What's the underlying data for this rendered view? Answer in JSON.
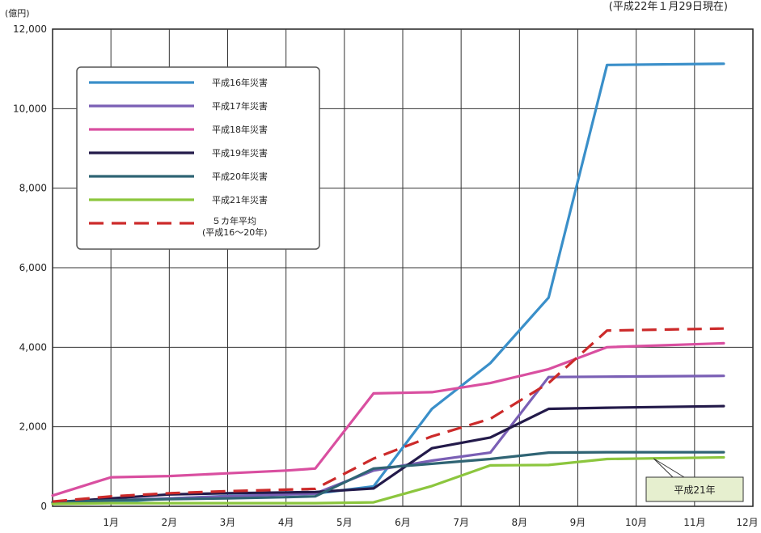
{
  "chart_data": {
    "type": "line",
    "title": "",
    "note": "(平成22年１月29日現在)",
    "y_unit": "(億円)",
    "ylim": [
      0,
      12000
    ],
    "y_ticks": [
      {
        "value": 0,
        "label": "0"
      },
      {
        "value": 2000,
        "label": "2,000"
      },
      {
        "value": 4000,
        "label": "4,000"
      },
      {
        "value": 6000,
        "label": "6,000"
      },
      {
        "value": 8000,
        "label": "8,000"
      },
      {
        "value": 10000,
        "label": "10,000"
      },
      {
        "value": 12000,
        "label": "12,000"
      }
    ],
    "xlim": [
      0,
      12
    ],
    "x_ticks": [
      {
        "value": 1,
        "label": "1月"
      },
      {
        "value": 2,
        "label": "2月"
      },
      {
        "value": 3,
        "label": "3月"
      },
      {
        "value": 4,
        "label": "4月"
      },
      {
        "value": 5,
        "label": "5月"
      },
      {
        "value": 6,
        "label": "6月"
      },
      {
        "value": 7,
        "label": "7月"
      },
      {
        "value": 8,
        "label": "8月"
      },
      {
        "value": 9,
        "label": "9月"
      },
      {
        "value": 10,
        "label": "10月"
      },
      {
        "value": 11,
        "label": "11月"
      },
      {
        "value": 12,
        "label": "12月"
      }
    ],
    "grid": true,
    "legend_position": "top-left",
    "series": [
      {
        "name": "平成16年災害",
        "color": "#3a8fc9",
        "dashed": false,
        "points": [
          [
            0,
            80
          ],
          [
            1,
            100
          ],
          [
            2,
            200
          ],
          [
            3,
            260
          ],
          [
            4,
            300
          ],
          [
            4.5,
            320
          ],
          [
            5.5,
            500
          ],
          [
            6.5,
            2450
          ],
          [
            7.5,
            3600
          ],
          [
            8.5,
            5250
          ],
          [
            9.5,
            11100
          ],
          [
            11.5,
            11130
          ]
        ]
      },
      {
        "name": "平成17年災害",
        "color": "#7a5fb5",
        "dashed": false,
        "points": [
          [
            0,
            90
          ],
          [
            1,
            150
          ],
          [
            2,
            200
          ],
          [
            3,
            250
          ],
          [
            4,
            300
          ],
          [
            4.5,
            320
          ],
          [
            5.5,
            900
          ],
          [
            6.5,
            1150
          ],
          [
            7.5,
            1350
          ],
          [
            8.5,
            3250
          ],
          [
            9.5,
            3260
          ],
          [
            11.5,
            3280
          ]
        ]
      },
      {
        "name": "平成18年災害",
        "color": "#d94fa0",
        "dashed": false,
        "points": [
          [
            0,
            270
          ],
          [
            1,
            730
          ],
          [
            2,
            760
          ],
          [
            3,
            830
          ],
          [
            4,
            900
          ],
          [
            4.5,
            950
          ],
          [
            5.5,
            2840
          ],
          [
            6.5,
            2870
          ],
          [
            7.5,
            3100
          ],
          [
            8.5,
            3450
          ],
          [
            9.5,
            4000
          ],
          [
            11.5,
            4100
          ]
        ]
      },
      {
        "name": "平成19年災害",
        "color": "#231a4a",
        "dashed": false,
        "points": [
          [
            0,
            100
          ],
          [
            1,
            200
          ],
          [
            2,
            300
          ],
          [
            3,
            330
          ],
          [
            4,
            350
          ],
          [
            4.5,
            360
          ],
          [
            5.5,
            450
          ],
          [
            6.5,
            1460
          ],
          [
            7.5,
            1730
          ],
          [
            8.5,
            2450
          ],
          [
            9.5,
            2480
          ],
          [
            11.5,
            2520
          ]
        ]
      },
      {
        "name": "平成20年災害",
        "color": "#2f6474",
        "dashed": false,
        "points": [
          [
            0,
            100
          ],
          [
            1,
            150
          ],
          [
            2,
            180
          ],
          [
            3,
            200
          ],
          [
            4,
            230
          ],
          [
            4.5,
            250
          ],
          [
            5.5,
            950
          ],
          [
            6.5,
            1070
          ],
          [
            7.5,
            1190
          ],
          [
            8.5,
            1350
          ],
          [
            9.5,
            1360
          ],
          [
            11.5,
            1360
          ]
        ]
      },
      {
        "name": "平成21年災害",
        "color": "#8cc63e",
        "dashed": false,
        "points": [
          [
            0,
            60
          ],
          [
            1,
            80
          ],
          [
            2,
            80
          ],
          [
            3,
            80
          ],
          [
            4,
            80
          ],
          [
            4.5,
            80
          ],
          [
            5.5,
            100
          ],
          [
            6.5,
            510
          ],
          [
            7.5,
            1030
          ],
          [
            8.5,
            1040
          ],
          [
            9.5,
            1190
          ],
          [
            11.5,
            1230
          ]
        ]
      },
      {
        "name": "５カ年平均",
        "name_sub": "(平成16〜20年)",
        "color": "#cc2a2a",
        "dashed": true,
        "points": [
          [
            0,
            120
          ],
          [
            1,
            250
          ],
          [
            2,
            330
          ],
          [
            3,
            380
          ],
          [
            4,
            420
          ],
          [
            4.5,
            440
          ],
          [
            5.5,
            1200
          ],
          [
            6.5,
            1760
          ],
          [
            7.5,
            2200
          ],
          [
            8.5,
            3100
          ],
          [
            9.5,
            4420
          ],
          [
            11.5,
            4470
          ]
        ]
      }
    ],
    "annotations": [
      {
        "text": "平成21年",
        "target_series": "平成21年災害",
        "target_point": [
          10.3,
          1200
        ]
      }
    ]
  }
}
